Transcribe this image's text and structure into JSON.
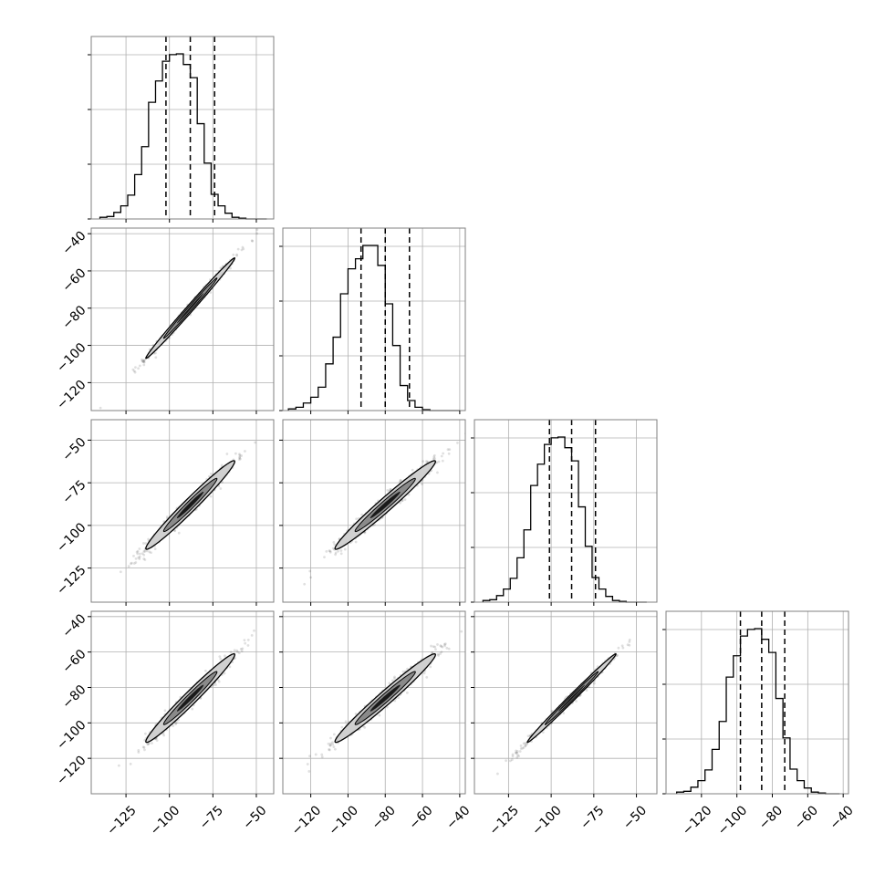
{
  "chart_data": {
    "type": "corner",
    "grid": true,
    "colors": {
      "hist": "#000000",
      "quantile": "#000000",
      "grid": "#b0b0b0",
      "frame": "#808080",
      "contour": "#000000",
      "density": "#000000"
    },
    "quantile_style": "dashed",
    "dims": [
      {
        "range": [
          -145,
          -40
        ],
        "ticks": [
          -125,
          -100,
          -75,
          -50
        ],
        "tick_labels": [
          "−125",
          "−100",
          "−75",
          "−50"
        ],
        "quantiles": [
          -102,
          -88,
          -74
        ],
        "hist": {
          "edges": [
            -140,
            -136,
            -132,
            -128,
            -124,
            -120,
            -116,
            -112,
            -108,
            -104,
            -100,
            -96,
            -92,
            -88,
            -84,
            -80,
            -76,
            -72,
            -68,
            -64,
            -60,
            -56,
            -52,
            -48,
            -44
          ],
          "counts": [
            1,
            1.5,
            4,
            8,
            14.5,
            27,
            44,
            71,
            84,
            96,
            100,
            100.5,
            94,
            86,
            58,
            34,
            15,
            8,
            3.5,
            1,
            0.5,
            0,
            0,
            0
          ]
        }
      },
      {
        "range": [
          -135,
          -37
        ],
        "ticks": [
          -120,
          -100,
          -80,
          -60,
          -40
        ],
        "tick_labels": [
          "−120",
          "−100",
          "−80",
          "−60",
          "−40"
        ],
        "quantiles": [
          -93,
          -80,
          -67
        ],
        "hist": {
          "edges": [
            -132,
            -128,
            -124,
            -120,
            -116,
            -112,
            -108,
            -104,
            -100,
            -96,
            -92,
            -88,
            -84,
            -80,
            -76,
            -72,
            -68,
            -64,
            -60,
            -56,
            -52,
            -48,
            -44,
            -40
          ],
          "counts": [
            1,
            2,
            4.5,
            8,
            14,
            28,
            44,
            70,
            85,
            91,
            99,
            99,
            87,
            64,
            39,
            15,
            6,
            2,
            0.5,
            0,
            0,
            0,
            0
          ]
        }
      },
      {
        "range": [
          -145,
          -38
        ],
        "ticks": [
          -125,
          -100,
          -75,
          -50
        ],
        "tick_labels": [
          "−125",
          "−100",
          "−75",
          "−50"
        ],
        "quantiles": [
          -101,
          -88,
          -74
        ],
        "hist": {
          "edges": [
            -140,
            -136,
            -132,
            -128,
            -124,
            -120,
            -116,
            -112,
            -108,
            -104,
            -100,
            -96,
            -92,
            -88,
            -84,
            -80,
            -76,
            -72,
            -68,
            -64,
            -60,
            -56,
            -52,
            -48,
            -44
          ],
          "counts": [
            1,
            1.5,
            4,
            8,
            14.5,
            27,
            44,
            71,
            84,
            96,
            100,
            100.5,
            94,
            86,
            58,
            34,
            15,
            8,
            3.5,
            1,
            0.5,
            0,
            0,
            0
          ]
        }
      },
      {
        "range": [
          -140,
          -37
        ],
        "ticks": [
          -120,
          -100,
          -80,
          -60,
          -40
        ],
        "tick_labels": [
          "−120",
          "−100",
          "−80",
          "−60",
          "−40"
        ],
        "quantiles": [
          -98,
          -86,
          -73
        ],
        "hist": {
          "edges": [
            -134,
            -130,
            -126,
            -122,
            -118,
            -114,
            -110,
            -106,
            -102,
            -98,
            -94,
            -90,
            -86,
            -82,
            -78,
            -74,
            -70,
            -66,
            -62,
            -58,
            -54,
            -50,
            -46,
            -42
          ],
          "counts": [
            1,
            1.5,
            4,
            8,
            14.5,
            27,
            44,
            71,
            84,
            96,
            100,
            100.5,
            94,
            86,
            58,
            34,
            15,
            8,
            3.5,
            1,
            0.5,
            0,
            0
          ]
        }
      }
    ],
    "pairs": [
      {
        "row": 1,
        "col": 0,
        "y_range": [
          -135,
          -37
        ],
        "y_ticks": [
          -120,
          -100,
          -80,
          -60,
          -40
        ],
        "y_tick_labels": [
          "−120",
          "−100",
          "−80",
          "−60",
          "−40"
        ],
        "mean": [
          -88,
          -80
        ],
        "sx": 12.8,
        "sy": 13.5,
        "rho": 0.995
      },
      {
        "row": 2,
        "col": 0,
        "y_range": [
          -145,
          -38
        ],
        "y_ticks": [
          -125,
          -100,
          -75,
          -50
        ],
        "y_tick_labels": [
          "−125",
          "−100",
          "−75",
          "−50"
        ],
        "mean": [
          -88,
          -88
        ],
        "sx": 12.8,
        "sy": 13,
        "rho": 0.98
      },
      {
        "row": 2,
        "col": 1,
        "y_range": [
          -145,
          -38
        ],
        "y_ticks": [
          -125,
          -100,
          -75,
          -50
        ],
        "y_tick_labels": [
          "−125",
          "−100",
          "−75",
          "−50"
        ],
        "mean": [
          -80,
          -88
        ],
        "sx": 13.5,
        "sy": 13,
        "rho": 0.98
      },
      {
        "row": 3,
        "col": 0,
        "y_range": [
          -140,
          -37
        ],
        "y_ticks": [
          -120,
          -100,
          -80,
          -60,
          -40
        ],
        "y_tick_labels": [
          "−120",
          "−100",
          "−80",
          "−60",
          "−40"
        ],
        "mean": [
          -88,
          -86
        ],
        "sx": 12.8,
        "sy": 12.5,
        "rho": 0.98
      },
      {
        "row": 3,
        "col": 1,
        "y_range": [
          -140,
          -37
        ],
        "y_ticks": [
          -120,
          -100,
          -80,
          -60,
          -40
        ],
        "y_tick_labels": [
          "−120",
          "−100",
          "−80",
          "−60",
          "−40"
        ],
        "mean": [
          -80,
          -86
        ],
        "sx": 13.5,
        "sy": 12.5,
        "rho": 0.98
      },
      {
        "row": 3,
        "col": 2,
        "y_range": [
          -140,
          -37
        ],
        "y_ticks": [
          -120,
          -100,
          -80,
          -60,
          -40
        ],
        "y_tick_labels": [
          "−120",
          "−100",
          "−80",
          "−60",
          "−40"
        ],
        "mean": [
          -88,
          -86
        ],
        "sx": 13,
        "sy": 12.5,
        "rho": 0.995
      }
    ]
  }
}
